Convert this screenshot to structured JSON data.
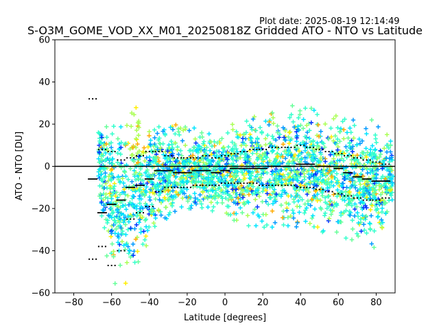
{
  "plot_date": "Plot date: 2025-08-19 12:14:49",
  "chart_data": {
    "type": "scatter",
    "title": "S-O3M_GOME_VOD_XX_M01_20250818Z Gridded ATO - NTO vs Latitude",
    "xlabel": "Latitude [degrees]",
    "ylabel": "ATO - NTO [DU]",
    "xlim": [
      -90,
      90
    ],
    "ylim": [
      -60,
      60
    ],
    "x_ticks": [
      -80,
      -60,
      -40,
      -20,
      0,
      20,
      40,
      60,
      80
    ],
    "y_ticks": [
      -60,
      -40,
      -20,
      0,
      20,
      40,
      60
    ],
    "x_tick_labels": [
      "−80",
      "−60",
      "−40",
      "−20",
      "0",
      "20",
      "40",
      "60",
      "80"
    ],
    "y_tick_labels": [
      "−60",
      "−40",
      "−20",
      "0",
      "20",
      "40",
      "60"
    ],
    "grid": false,
    "legend": "none",
    "zero_line": 0,
    "marker_colors": [
      "#0033ff",
      "#0099ff",
      "#00e5ff",
      "#33ffcc",
      "#66ff99",
      "#aaff55",
      "#ffee00",
      "#ffaa00"
    ],
    "mean_bins": [
      {
        "x": -70,
        "y": -6
      },
      {
        "x": -65,
        "y": -22
      },
      {
        "x": -60,
        "y": -18
      },
      {
        "x": -55,
        "y": -16
      },
      {
        "x": -50,
        "y": -10
      },
      {
        "x": -45,
        "y": -9
      },
      {
        "x": -40,
        "y": -6
      },
      {
        "x": -35,
        "y": -2
      },
      {
        "x": -30,
        "y": -2
      },
      {
        "x": -25,
        "y": -3
      },
      {
        "x": -20,
        "y": -3
      },
      {
        "x": -15,
        "y": -2
      },
      {
        "x": -10,
        "y": -2
      },
      {
        "x": -5,
        "y": -3
      },
      {
        "x": 0,
        "y": -2
      },
      {
        "x": 5,
        "y": -1
      },
      {
        "x": 10,
        "y": -1
      },
      {
        "x": 15,
        "y": -1
      },
      {
        "x": 20,
        "y": -1
      },
      {
        "x": 25,
        "y": 0
      },
      {
        "x": 30,
        "y": 0
      },
      {
        "x": 35,
        "y": 0
      },
      {
        "x": 40,
        "y": 1
      },
      {
        "x": 45,
        "y": 1
      },
      {
        "x": 50,
        "y": 0
      },
      {
        "x": 55,
        "y": 0
      },
      {
        "x": 60,
        "y": -1
      },
      {
        "x": 65,
        "y": -3
      },
      {
        "x": 70,
        "y": -5
      },
      {
        "x": 75,
        "y": -6
      },
      {
        "x": 80,
        "y": -7
      },
      {
        "x": 85,
        "y": -7
      }
    ],
    "std_upper": [
      {
        "x": -70,
        "y": 32
      },
      {
        "x": -65,
        "y": 8
      },
      {
        "x": -60,
        "y": 7
      },
      {
        "x": -55,
        "y": 3
      },
      {
        "x": -50,
        "y": 4
      },
      {
        "x": -45,
        "y": 5
      },
      {
        "x": -40,
        "y": 7
      },
      {
        "x": -35,
        "y": 7
      },
      {
        "x": -30,
        "y": 5
      },
      {
        "x": -25,
        "y": 4
      },
      {
        "x": -20,
        "y": 4
      },
      {
        "x": -15,
        "y": 4
      },
      {
        "x": -10,
        "y": 5
      },
      {
        "x": -5,
        "y": 4
      },
      {
        "x": 0,
        "y": 5
      },
      {
        "x": 5,
        "y": 6
      },
      {
        "x": 10,
        "y": 7
      },
      {
        "x": 15,
        "y": 8
      },
      {
        "x": 20,
        "y": 8
      },
      {
        "x": 25,
        "y": 9
      },
      {
        "x": 30,
        "y": 9
      },
      {
        "x": 35,
        "y": 9
      },
      {
        "x": 40,
        "y": 10
      },
      {
        "x": 45,
        "y": 9
      },
      {
        "x": 50,
        "y": 8
      },
      {
        "x": 55,
        "y": 7
      },
      {
        "x": 60,
        "y": 6
      },
      {
        "x": 65,
        "y": 5
      },
      {
        "x": 70,
        "y": 4
      },
      {
        "x": 75,
        "y": 3
      },
      {
        "x": 80,
        "y": 2
      },
      {
        "x": 85,
        "y": 1
      }
    ],
    "std_lower": [
      {
        "x": -70,
        "y": -44
      },
      {
        "x": -65,
        "y": -38
      },
      {
        "x": -60,
        "y": -47
      },
      {
        "x": -55,
        "y": -40
      },
      {
        "x": -50,
        "y": -25
      },
      {
        "x": -45,
        "y": -22
      },
      {
        "x": -40,
        "y": -19
      },
      {
        "x": -35,
        "y": -12
      },
      {
        "x": -30,
        "y": -10
      },
      {
        "x": -25,
        "y": -10
      },
      {
        "x": -20,
        "y": -10
      },
      {
        "x": -15,
        "y": -9
      },
      {
        "x": -10,
        "y": -9
      },
      {
        "x": -5,
        "y": -9
      },
      {
        "x": 0,
        "y": -8
      },
      {
        "x": 5,
        "y": -8
      },
      {
        "x": 10,
        "y": -8
      },
      {
        "x": 15,
        "y": -8
      },
      {
        "x": 20,
        "y": -9
      },
      {
        "x": 25,
        "y": -9
      },
      {
        "x": 30,
        "y": -9
      },
      {
        "x": 35,
        "y": -9
      },
      {
        "x": 40,
        "y": -10
      },
      {
        "x": 45,
        "y": -10
      },
      {
        "x": 50,
        "y": -11
      },
      {
        "x": 55,
        "y": -12
      },
      {
        "x": 60,
        "y": -13
      },
      {
        "x": 65,
        "y": -14
      },
      {
        "x": 70,
        "y": -15
      },
      {
        "x": 75,
        "y": -16
      },
      {
        "x": 80,
        "y": -16
      },
      {
        "x": 85,
        "y": -15
      }
    ],
    "spread_envelope": [
      {
        "x": -67,
        "lo": -10,
        "hi": 20
      },
      {
        "x": -63,
        "lo": -45,
        "hi": 20
      },
      {
        "x": -58,
        "lo": -58,
        "hi": 24
      },
      {
        "x": -54,
        "lo": -58,
        "hi": 22
      },
      {
        "x": -50,
        "lo": -55,
        "hi": 26
      },
      {
        "x": -46,
        "lo": -48,
        "hi": 33
      },
      {
        "x": -42,
        "lo": -40,
        "hi": 22
      },
      {
        "x": -38,
        "lo": -30,
        "hi": 20
      },
      {
        "x": -32,
        "lo": -28,
        "hi": 22
      },
      {
        "x": -26,
        "lo": -24,
        "hi": 20
      },
      {
        "x": -20,
        "lo": -22,
        "hi": 20
      },
      {
        "x": -14,
        "lo": -20,
        "hi": 18
      },
      {
        "x": -8,
        "lo": -22,
        "hi": 18
      },
      {
        "x": -2,
        "lo": -24,
        "hi": 18
      },
      {
        "x": 4,
        "lo": -26,
        "hi": 20
      },
      {
        "x": 10,
        "lo": -28,
        "hi": 22
      },
      {
        "x": 16,
        "lo": -30,
        "hi": 24
      },
      {
        "x": 22,
        "lo": -30,
        "hi": 26
      },
      {
        "x": 28,
        "lo": -28,
        "hi": 26
      },
      {
        "x": 34,
        "lo": -30,
        "hi": 30
      },
      {
        "x": 40,
        "lo": -30,
        "hi": 28
      },
      {
        "x": 46,
        "lo": -30,
        "hi": 28
      },
      {
        "x": 52,
        "lo": -32,
        "hi": 24
      },
      {
        "x": 58,
        "lo": -34,
        "hi": 24
      },
      {
        "x": 64,
        "lo": -36,
        "hi": 24
      },
      {
        "x": 70,
        "lo": -38,
        "hi": 22
      },
      {
        "x": 76,
        "lo": -40,
        "hi": 22
      },
      {
        "x": 82,
        "lo": -38,
        "hi": 22
      },
      {
        "x": 88,
        "lo": -20,
        "hi": 12
      }
    ]
  }
}
